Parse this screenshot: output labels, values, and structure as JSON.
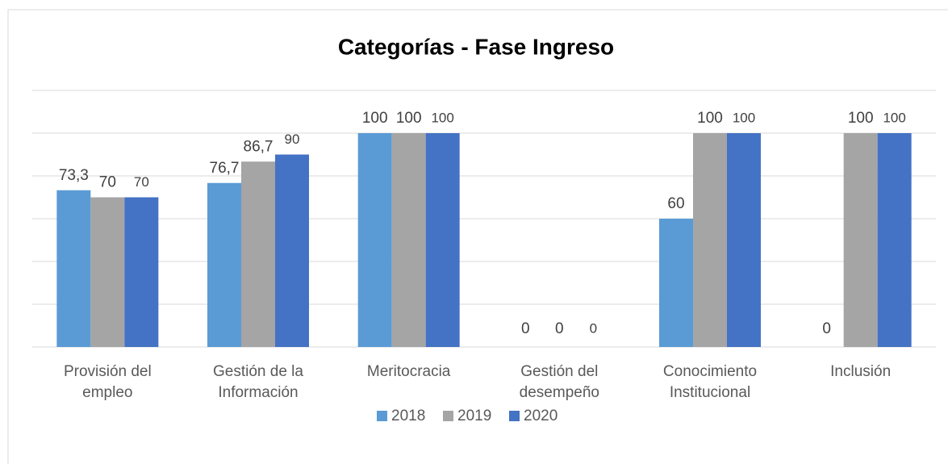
{
  "chart_data": {
    "type": "bar",
    "title": "Categorías - Fase Ingreso",
    "categories": [
      "Provisión del empleo",
      "Gestión de la Información",
      "Meritocracia",
      "Gestión del desempeño",
      "Conocimiento Institucional",
      "Inclusión"
    ],
    "series": [
      {
        "name": "2018",
        "color": "#5b9bd5",
        "values": [
          73.3,
          76.7,
          100,
          0,
          60,
          0
        ],
        "value_labels": [
          "73,3",
          "76,7",
          "100",
          "0",
          "60",
          "0"
        ]
      },
      {
        "name": "2019",
        "color": "#a5a5a5",
        "values": [
          70,
          86.7,
          100,
          0,
          100,
          100
        ],
        "value_labels": [
          "70",
          "86,7",
          "100",
          "0",
          "100",
          "100"
        ]
      },
      {
        "name": "2020",
        "color": "#4472c4",
        "values": [
          70,
          90,
          100,
          0,
          100,
          100
        ],
        "value_labels": [
          "70",
          "90",
          "100",
          "0",
          "100",
          "100"
        ]
      }
    ],
    "ylim": [
      0,
      120
    ],
    "yticks": [
      0,
      20,
      40,
      60,
      80,
      100,
      120
    ],
    "grid": true,
    "legend": "bottom"
  }
}
